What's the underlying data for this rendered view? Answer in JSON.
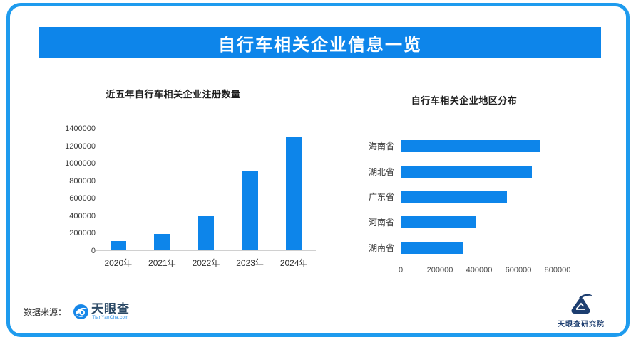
{
  "page": {
    "title": "自行车相关企业信息一览"
  },
  "footer": {
    "source_label": "数据来源：",
    "source_logo_text": "天眼查",
    "source_logo_subtext": "TianYanCha.com",
    "publisher_logo_text": "天眼查研究院"
  },
  "colors": {
    "brand_blue": "#0d85ea",
    "border_blue": "#1e9bee",
    "logo_navy": "#1d3e70",
    "axis_line_gray": "#d0d0d0"
  },
  "chart_data": [
    {
      "type": "bar",
      "title": "近五年自行车相关企业注册数量",
      "categories": [
        "2020年",
        "2021年",
        "2022年",
        "2023年",
        "2024年"
      ],
      "values": [
        110000,
        190000,
        390000,
        910000,
        1310000
      ],
      "xlabel": "",
      "ylabel": "",
      "ylim": [
        0,
        1400000
      ],
      "yticks": [
        "1400000",
        "1200000",
        "1000000",
        "800000",
        "600000",
        "400000",
        "200000",
        "0"
      ],
      "grid": false,
      "legend": false,
      "bar_color": "#0d85ea"
    },
    {
      "type": "bar",
      "orientation": "horizontal",
      "title": "自行车相关企业地区分布",
      "categories": [
        "海南省",
        "湖北省",
        "广东省",
        "河南省",
        "湖南省"
      ],
      "values": [
        710000,
        670000,
        540000,
        380000,
        320000
      ],
      "xlabel": "",
      "ylabel": "",
      "xlim": [
        0,
        800000
      ],
      "xticks": [
        "0",
        "200000",
        "400000",
        "600000",
        "800000"
      ],
      "grid": false,
      "legend": false,
      "bar_color": "#0d85ea"
    }
  ]
}
